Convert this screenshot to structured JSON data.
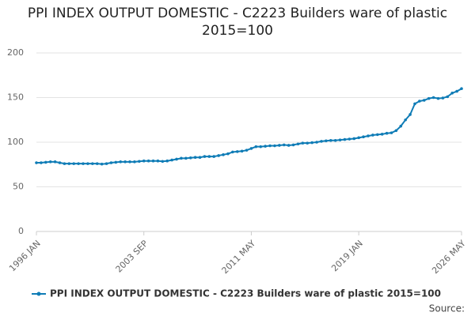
{
  "chart_data": {
    "type": "line",
    "title": "PPI INDEX OUTPUT DOMESTIC - C2223 Builders ware of plastic 2015=100",
    "categories": [
      "1996 JAN",
      null,
      null,
      null,
      null,
      null,
      null,
      null,
      null,
      null,
      null,
      null,
      null,
      null,
      null,
      null,
      null,
      null,
      null,
      null,
      null,
      null,
      null,
      "2003 SEP",
      null,
      null,
      null,
      null,
      null,
      null,
      null,
      null,
      null,
      null,
      null,
      null,
      null,
      null,
      null,
      null,
      null,
      null,
      null,
      null,
      null,
      null,
      "2011 MAY",
      null,
      null,
      null,
      null,
      null,
      null,
      null,
      null,
      null,
      null,
      null,
      null,
      null,
      null,
      null,
      null,
      null,
      null,
      null,
      null,
      null,
      null,
      "2019 JAN",
      null,
      null,
      null,
      null,
      null,
      null,
      null,
      null,
      null,
      null,
      null,
      null,
      null,
      null,
      null,
      null,
      null,
      null,
      null,
      null,
      null,
      "2026 MAY"
    ],
    "series": [
      {
        "name": "PPI INDEX OUTPUT DOMESTIC - C2223 Builders ware of plastic 2015=100",
        "color": "#0f7cb6",
        "values": [
          77,
          77,
          77.5,
          78,
          78,
          77,
          76,
          76,
          76,
          76,
          76,
          76,
          76,
          76,
          75.5,
          76,
          77,
          77.5,
          78,
          78,
          78,
          78,
          78.5,
          79,
          79,
          79,
          79,
          78.5,
          79,
          80,
          81,
          82,
          82,
          82.5,
          83,
          83,
          84,
          84,
          84,
          85,
          86,
          87,
          89,
          89.5,
          90,
          91,
          93,
          95,
          95,
          95.5,
          96,
          96,
          96.5,
          97,
          96.5,
          97,
          98,
          99,
          99,
          99.5,
          100,
          101,
          101.5,
          102,
          102,
          102.5,
          103,
          103.5,
          104,
          105,
          106,
          107,
          108,
          108.5,
          109,
          110,
          110.5,
          113,
          118,
          125,
          131,
          143,
          146,
          147,
          149,
          150,
          149,
          149.5,
          151,
          155,
          157,
          160
        ]
      }
    ],
    "ylim": [
      0,
      200
    ],
    "yticks": [
      0,
      50,
      100,
      150,
      200
    ],
    "grid": true,
    "source": "Source:"
  }
}
